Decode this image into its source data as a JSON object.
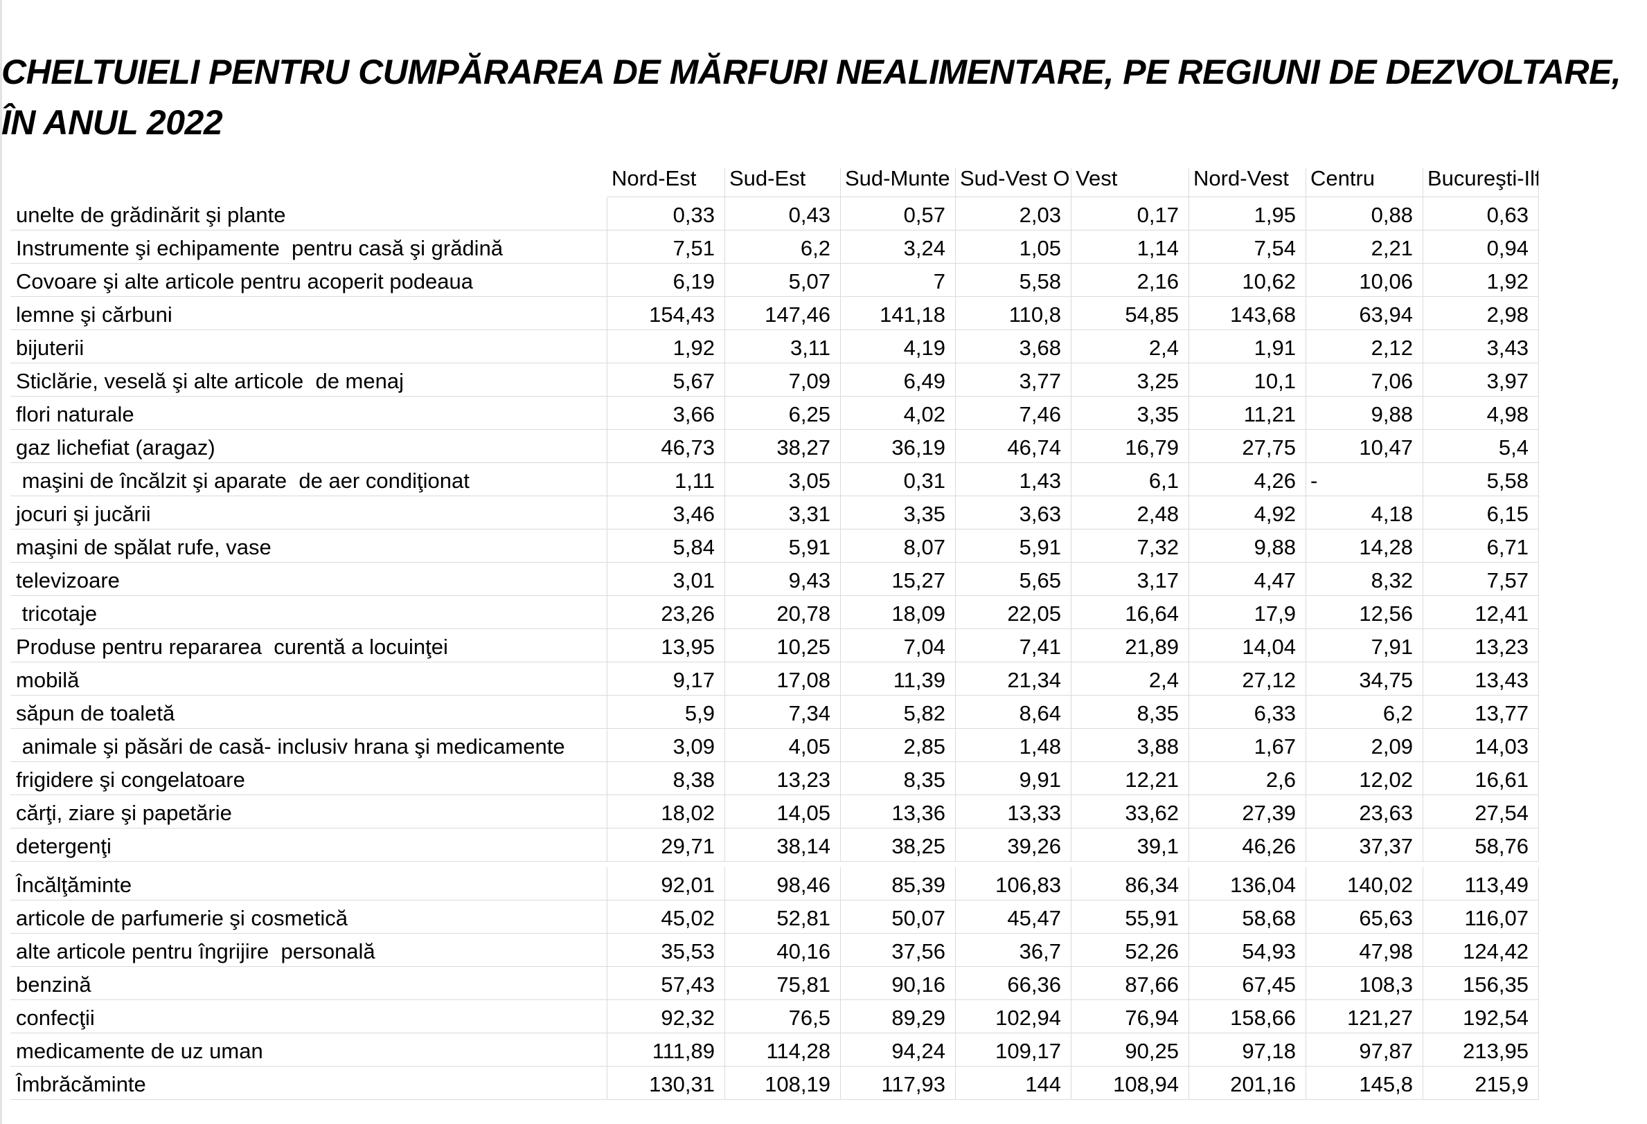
{
  "header": {
    "title": [
      "CHELTUIELI PENTRU CUMPĂRAREA DE MĂRFURI NEALIMENTARE, PE REGIUNI DE DEZVOLTARE,",
      "ÎN ANUL 2022"
    ]
  },
  "table": {
    "columns": [
      "Nord-Est",
      "Sud-Est",
      "Sud-Munte",
      "Sud-Vest O",
      "Vest",
      "Nord-Vest",
      "Centru",
      "Bucureşti-Ilf"
    ],
    "rows": [
      [
        "unelte de grădinărit şi plante",
        "0,33",
        "0,43",
        "0,57",
        "2,03",
        "0,17",
        "1,95",
        "0,88",
        "0,63"
      ],
      [
        "Instrumente şi echipamente  pentru casă şi grădină",
        "7,51",
        "6,2",
        "3,24",
        "1,05",
        "1,14",
        "7,54",
        "2,21",
        "0,94"
      ],
      [
        "Covoare şi alte articole pentru acoperit podeaua",
        "6,19",
        "5,07",
        "7",
        "5,58",
        "2,16",
        "10,62",
        "10,06",
        "1,92"
      ],
      [
        "lemne şi cărbuni",
        "154,43",
        "147,46",
        "141,18",
        "110,8",
        "54,85",
        "143,68",
        "63,94",
        "2,98"
      ],
      [
        "bijuterii",
        "1,92",
        "3,11",
        "4,19",
        "3,68",
        "2,4",
        "1,91",
        "2,12",
        "3,43"
      ],
      [
        "Sticlărie, veselă şi alte articole  de menaj",
        "5,67",
        "7,09",
        "6,49",
        "3,77",
        "3,25",
        "10,1",
        "7,06",
        "3,97"
      ],
      [
        "flori naturale",
        "3,66",
        "6,25",
        "4,02",
        "7,46",
        "3,35",
        "11,21",
        "9,88",
        "4,98"
      ],
      [
        "gaz lichefiat (aragaz)",
        "46,73",
        "38,27",
        "36,19",
        "46,74",
        "16,79",
        "27,75",
        "10,47",
        "5,4"
      ],
      [
        " maşini de încălzit şi aparate  de aer condiţionat",
        "1,11",
        "3,05",
        "0,31",
        "1,43",
        "6,1",
        "4,26",
        "-",
        "5,58"
      ],
      [
        "jocuri şi jucării",
        "3,46",
        "3,31",
        "3,35",
        "3,63",
        "2,48",
        "4,92",
        "4,18",
        "6,15"
      ],
      [
        "maşini de spălat rufe, vase",
        "5,84",
        "5,91",
        "8,07",
        "5,91",
        "7,32",
        "9,88",
        "14,28",
        "6,71"
      ],
      [
        "televizoare",
        "3,01",
        "9,43",
        "15,27",
        "5,65",
        "3,17",
        "4,47",
        "8,32",
        "7,57"
      ],
      [
        " tricotaje",
        "23,26",
        "20,78",
        "18,09",
        "22,05",
        "16,64",
        "17,9",
        "12,56",
        "12,41"
      ],
      [
        "Produse pentru repararea  curentă a locuinţei",
        "13,95",
        "10,25",
        "7,04",
        "7,41",
        "21,89",
        "14,04",
        "7,91",
        "13,23"
      ],
      [
        "mobilă",
        "9,17",
        "17,08",
        "11,39",
        "21,34",
        "2,4",
        "27,12",
        "34,75",
        "13,43"
      ],
      [
        "săpun de toaletă",
        "5,9",
        "7,34",
        "5,82",
        "8,64",
        "8,35",
        "6,33",
        "6,2",
        "13,77"
      ],
      [
        " animale şi păsări de casă- inclusiv hrana şi medicamente",
        "3,09",
        "4,05",
        "2,85",
        "1,48",
        "3,88",
        "1,67",
        "2,09",
        "14,03"
      ],
      [
        "frigidere şi congelatoare",
        "8,38",
        "13,23",
        "8,35",
        "9,91",
        "12,21",
        "2,6",
        "12,02",
        "16,61"
      ],
      [
        "cărţi, ziare şi papetărie",
        "18,02",
        "14,05",
        "13,36",
        "13,33",
        "33,62",
        "27,39",
        "23,63",
        "27,54"
      ],
      [
        "detergenţi",
        "29,71",
        "38,14",
        "38,25",
        "39,26",
        "39,1",
        "46,26",
        "37,37",
        "58,76"
      ],
      [
        "Încălţăminte",
        "92,01",
        "98,46",
        "85,39",
        "106,83",
        "86,34",
        "136,04",
        "140,02",
        "113,49"
      ],
      [
        "articole de parfumerie şi cosmetică",
        "45,02",
        "52,81",
        "50,07",
        "45,47",
        "55,91",
        "58,68",
        "65,63",
        "116,07"
      ],
      [
        "alte articole pentru îngrijire  personală",
        "35,53",
        "40,16",
        "37,56",
        "36,7",
        "52,26",
        "54,93",
        "47,98",
        "124,42"
      ],
      [
        "benzină",
        "57,43",
        "75,81",
        "90,16",
        "66,36",
        "87,66",
        "67,45",
        "108,3",
        "156,35"
      ],
      [
        "confecţii",
        "92,32",
        "76,5",
        "89,29",
        "102,94",
        "76,94",
        "158,66",
        "121,27",
        "192,54"
      ],
      [
        "medicamente de uz uman",
        "111,89",
        "114,28",
        "94,24",
        "109,17",
        "90,25",
        "97,18",
        "97,87",
        "213,95"
      ],
      [
        "Îmbrăcăminte",
        "130,31",
        "108,19",
        "117,93",
        "144",
        "108,94",
        "201,16",
        "145,8",
        "215,9"
      ]
    ]
  }
}
